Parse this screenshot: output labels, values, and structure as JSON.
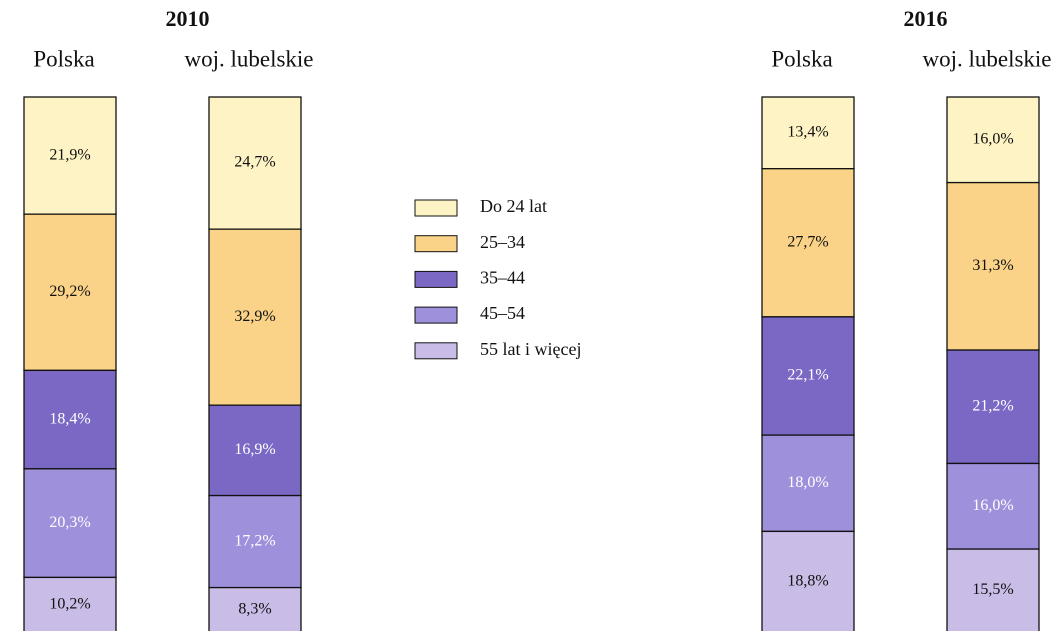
{
  "chart_data": {
    "type": "bar",
    "stacked": true,
    "groups": [
      "2010",
      "2016"
    ],
    "categories": [
      "Polska",
      "woj. lubelskie",
      "Polska",
      "woj. lubelskie"
    ],
    "series": [
      {
        "name": "Do 24 lat",
        "color": "#fdf3c4",
        "values": [
          21.9,
          24.7,
          13.4,
          16.0
        ],
        "value_labels": [
          "21,9%",
          "24,7%",
          "13,4%",
          "16,0%"
        ]
      },
      {
        "name": "25–34",
        "color": "#fad388",
        "values": [
          29.2,
          32.9,
          27.7,
          31.3
        ],
        "value_labels": [
          "29,2%",
          "32,9%",
          "27,7%",
          "31,3%"
        ]
      },
      {
        "name": "35–44",
        "color": "#7b68c4",
        "values": [
          18.4,
          16.9,
          22.1,
          21.2
        ],
        "value_labels": [
          "18,4%",
          "16,9%",
          "22,1%",
          "21,2%"
        ]
      },
      {
        "name": "45–54",
        "color": "#9f90dc",
        "values": [
          20.3,
          17.2,
          18.0,
          16.0
        ],
        "value_labels": [
          "20,3%",
          "17,2%",
          "18,0%",
          "16,0%"
        ]
      },
      {
        "name": "55 lat i więcej",
        "color": "#c9bde8",
        "values": [
          10.2,
          8.3,
          18.8,
          15.5
        ],
        "value_labels": [
          "10,2%",
          "8,3%",
          "18,8%",
          "15,5%"
        ]
      }
    ]
  }
}
